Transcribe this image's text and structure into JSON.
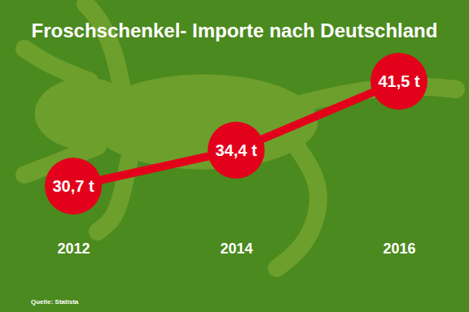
{
  "chart_data": {
    "type": "line",
    "title": "Froschschenkel- Importe nach Deutschland",
    "source": "Quelle: Statista",
    "categories": [
      "2012",
      "2014",
      "2016"
    ],
    "values": [
      30.7,
      34.4,
      41.5
    ],
    "value_labels": [
      "30,7 t",
      "34,4 t",
      "41,5 t"
    ],
    "color": "#e3001b",
    "marker": "circle",
    "data_labels": true,
    "tick_labels": "x"
  }
}
